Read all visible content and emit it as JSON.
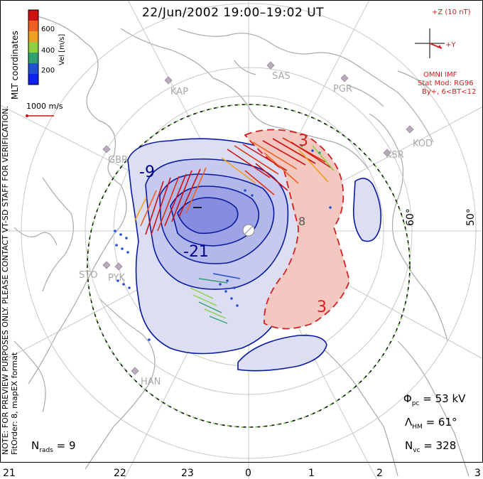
{
  "title": "22/Jun/2002 19:00–19:02 UT",
  "side_notes": {
    "coordinates": "MLT coordinates",
    "preview_line1": "NOTE: FOR PREVIEW PURPOSES ONLY. PLEASE CONTACT VT-SD STAFF FOR VERIFICATION.",
    "preview_line2": "FitOrder: 8, mapEX format"
  },
  "velocity_scale": {
    "axis_label": "Vel [m/s]",
    "ticks": [
      "600",
      "400",
      "200"
    ],
    "reference_label": "1000 m/s",
    "colors": [
      "#d01010",
      "#f06020",
      "#f0a020",
      "#90d040",
      "#30a070",
      "#2050d0",
      "#1020f0"
    ]
  },
  "imf": {
    "z_label": "+Z (10 nT)",
    "y_label": "+Y",
    "source": "OMNI IMF",
    "stat_model": "Stat Mod: RG96",
    "condition": "By+, 6<BT<12",
    "color": "#d42020"
  },
  "stats": {
    "phi_symbol": "Φ",
    "phi_sub": "pc",
    "phi_value": "= 53 kV",
    "lambda_symbol": "Λ",
    "lambda_sub": "HM",
    "lambda_value": "= 61°",
    "nvc_symbol": "N",
    "nvc_sub": "vc",
    "nvc_value": "= 328",
    "nrads_symbol": "N",
    "nrads_sub": "rads",
    "nrads_value": "= 9"
  },
  "mlt_labels": [
    "21",
    "22",
    "23",
    "0",
    "1",
    "2",
    "3"
  ],
  "latitude_labels": [
    "60°",
    "50°"
  ],
  "radar_sites": [
    "KAP",
    "SAS",
    "PGR",
    "KSR",
    "KOD",
    "GBR",
    "STO",
    "PYK",
    "HAN"
  ],
  "contour_labels": [
    "-9",
    "-21",
    "3",
    "3",
    "8"
  ],
  "colors": {
    "negative_fill": "#b8bce8",
    "negative_line": "#0a1aa0",
    "positive_fill": "#f2c8c0",
    "positive_line": "#d42020",
    "coastline": "#a9a9a9",
    "boundary": "#2a8a2a"
  }
}
